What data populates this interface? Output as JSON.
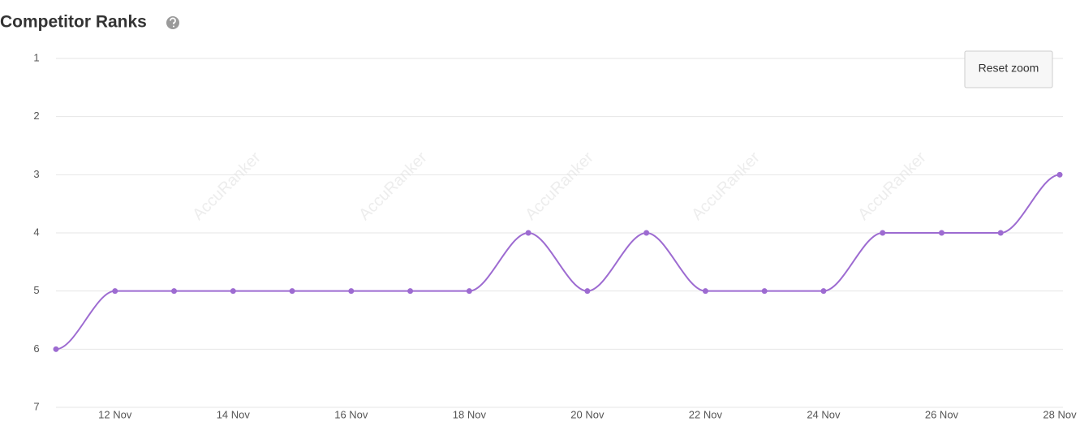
{
  "chart_data": {
    "type": "line",
    "title": "Competitor Ranks",
    "button": "Reset zoom",
    "watermark": "AccuRanker",
    "categories": [
      null,
      "12 Nov",
      null,
      "14 Nov",
      null,
      "16 Nov",
      null,
      "18 Nov",
      null,
      "20 Nov",
      null,
      "22 Nov",
      null,
      "24 Nov",
      null,
      "26 Nov",
      null,
      "28 Nov"
    ],
    "values": [
      6,
      5,
      5,
      5,
      5,
      5,
      5,
      5,
      4,
      5,
      4,
      5,
      5,
      5,
      4,
      4,
      4,
      3
    ],
    "color": "#9d6bd1",
    "ylim": [
      1,
      7
    ],
    "y_reversed": true,
    "yticks": [
      1,
      2,
      3,
      4,
      5,
      6,
      7
    ],
    "grid": true
  }
}
